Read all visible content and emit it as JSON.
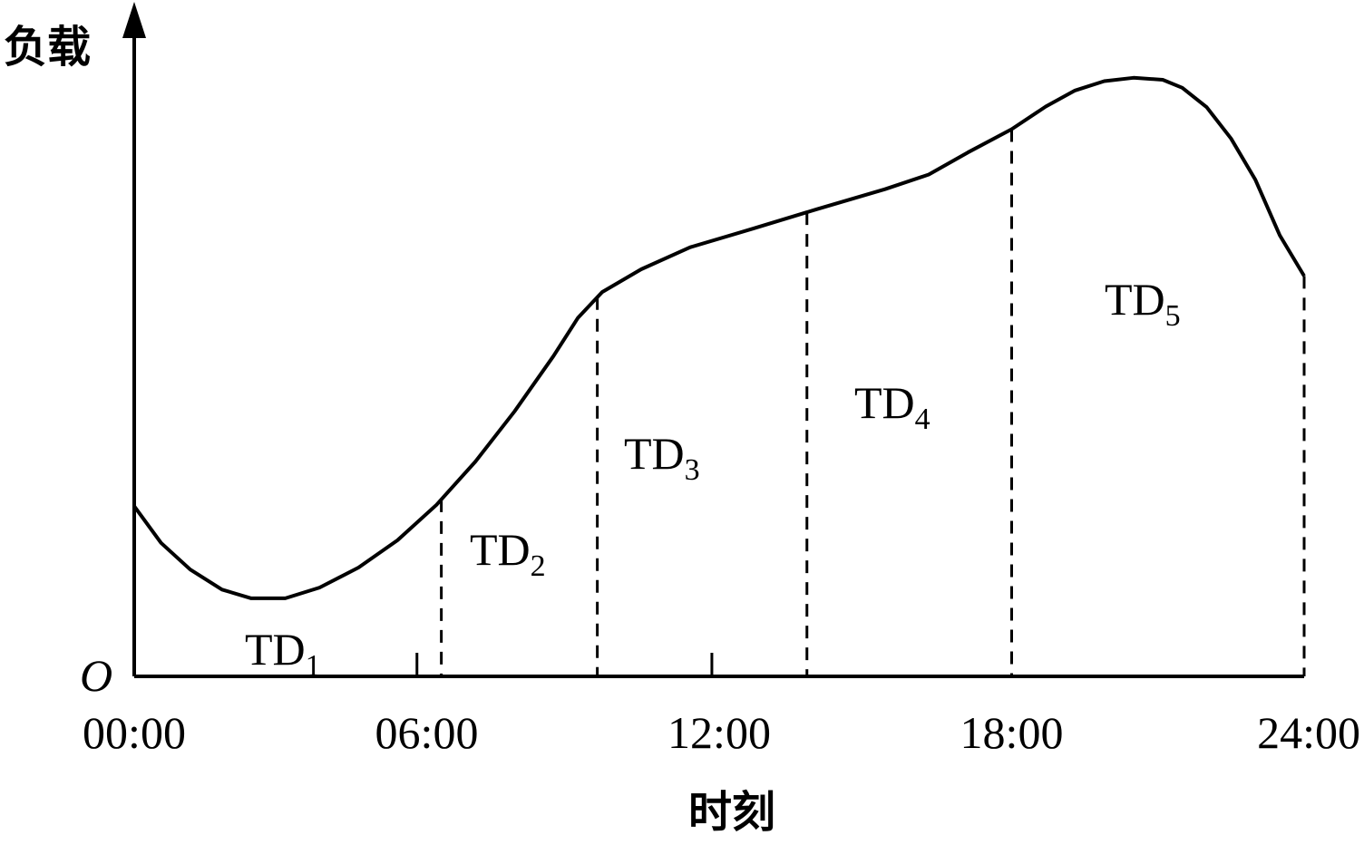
{
  "chart_data": {
    "type": "line",
    "title": "",
    "ylabel": "负载",
    "xlabel": "时刻",
    "origin_label": "O",
    "x_tick_labels": [
      "00:00",
      "06:00",
      "12:00",
      "18:00",
      "24:00"
    ],
    "x_ticks": [
      0,
      6,
      12,
      18,
      24
    ],
    "xlim": [
      0,
      24
    ],
    "ylim": [
      0,
      1
    ],
    "grid": false,
    "legend": "none",
    "series": [
      {
        "x": [
          0,
          0.55,
          1.15,
          1.8,
          2.4,
          3.1,
          3.8,
          4.6,
          5.4,
          6.2,
          7.0,
          7.8,
          8.6,
          9.1,
          9.6,
          10.4,
          11.4,
          12.7,
          14.0,
          15.4,
          16.3,
          17.1,
          18.0,
          18.7,
          19.3,
          19.9,
          20.5,
          21.1,
          21.5,
          22.0,
          22.5,
          23.0,
          23.5,
          24.0
        ],
        "y": [
          0.255,
          0.2,
          0.16,
          0.13,
          0.117,
          0.117,
          0.133,
          0.163,
          0.204,
          0.257,
          0.322,
          0.397,
          0.48,
          0.537,
          0.576,
          0.61,
          0.643,
          0.671,
          0.7,
          0.73,
          0.752,
          0.785,
          0.82,
          0.854,
          0.878,
          0.892,
          0.897,
          0.894,
          0.882,
          0.853,
          0.806,
          0.744,
          0.661,
          0.6
        ]
      }
    ],
    "periods": [
      {
        "name": "TD",
        "sub": "1",
        "start": 0.0,
        "end": 6.3
      },
      {
        "name": "TD",
        "sub": "2",
        "start": 6.3,
        "end": 9.5
      },
      {
        "name": "TD",
        "sub": "3",
        "start": 9.5,
        "end": 13.8
      },
      {
        "name": "TD",
        "sub": "4",
        "start": 13.8,
        "end": 18.0
      },
      {
        "name": "TD",
        "sub": "5",
        "start": 18.0,
        "end": 24.0
      }
    ],
    "period_boundaries": [
      6.3,
      9.5,
      13.8,
      18.0,
      24.0
    ],
    "minor_ticks": [
      5.8,
      11.85
    ]
  }
}
